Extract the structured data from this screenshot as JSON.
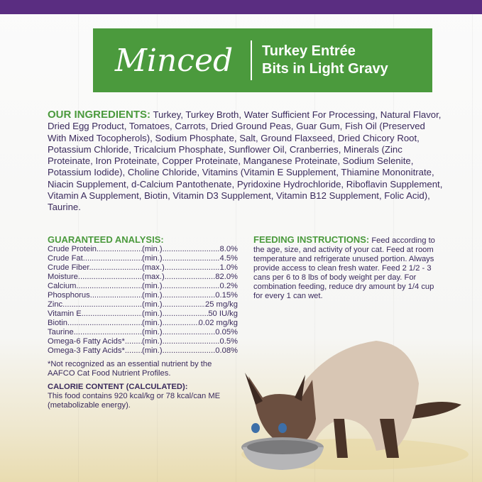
{
  "colors": {
    "top_band": "#5a2d81",
    "banner": "#4b9a3d",
    "heading": "#4b9a3d",
    "text": "#3a2a5c"
  },
  "banner": {
    "style": "Minced",
    "line1": "Turkey Entrée",
    "line2": "Bits in Light Gravy"
  },
  "ingredients": {
    "heading": "OUR INGREDIENTS:",
    "text": " Turkey, Turkey Broth, Water Sufficient For Processing, Natural Flavor, Dried Egg Product, Tomatoes, Carrots, Dried Ground Peas, Guar Gum, Fish Oil (Preserved With Mixed Tocopherols), Sodium Phosphate, Salt, Ground Flaxseed, Dried Chicory Root, Potassium Chloride, Tricalcium Phosphate, Sunflower Oil, Cranberries, Minerals (Zinc Proteinate, Iron Proteinate, Copper Proteinate, Manganese Proteinate, Sodium Selenite, Potassium Iodide), Choline Chloride, Vitamins (Vitamin E Supplement, Thiamine Mononitrate, Niacin Supplement, d-Calcium Pantothenate, Pyridoxine Hydrochloride, Riboflavin Supplement, Vitamin A Supplement, Biotin, Vitamin D3 Supplement, Vitamin B12 Supplement, Folic Acid), Taurine."
  },
  "analysis": {
    "heading": "GUARANTEED ANALYSIS:",
    "rows": [
      {
        "name": "Crude Protein",
        "unit": "(min.)",
        "value": "8.0%"
      },
      {
        "name": "Crude Fat",
        "unit": "(min.)",
        "value": "4.5%"
      },
      {
        "name": "Crude Fiber",
        "unit": "(max.)",
        "value": "1.0%"
      },
      {
        "name": "Moisture",
        "unit": "(max.)",
        "value": "82.0%"
      },
      {
        "name": "Calcium",
        "unit": "(min.)",
        "value": "0.2%"
      },
      {
        "name": "Phosphorus",
        "unit": "(min.)",
        "value": "0.15%"
      },
      {
        "name": "Zinc",
        "unit": "(min.)",
        "value": "25 mg/kg"
      },
      {
        "name": "Vitamin E",
        "unit": "(min.)",
        "value": "50 IU/kg"
      },
      {
        "name": "Biotin",
        "unit": "(min.)",
        "value": "0.02 mg/kg"
      },
      {
        "name": "Taurine",
        "unit": "(min.)",
        "value": "0.05%"
      },
      {
        "name": "Omega-6 Fatty Acids*",
        "unit": "(min.)",
        "value": "0.5%"
      },
      {
        "name": "Omega-3 Fatty Acids*",
        "unit": "(min.)",
        "value": "0.08%"
      }
    ],
    "footnote": "*Not recognized as an essential nutrient by the AAFCO Cat Food Nutrient Profiles.",
    "calorie_heading": "CALORIE CONTENT (CALCULATED):",
    "calorie_text": "This food contains 920 kcal/kg or 78 kcal/can ME (metabolizable energy)."
  },
  "feeding": {
    "heading": "FEEDING INSTRUCTIONS:",
    "text": " Feed according to the age, size, and activity of your cat. Feed at room temperature and refrigerate unused portion. Always provide access to clean fresh water. Feed 2 1/2 - 3 cans per 6 to 8 lbs of body weight per day. For combination feeding, reduce dry amount by 1/4 cup for every 1 can wet."
  }
}
